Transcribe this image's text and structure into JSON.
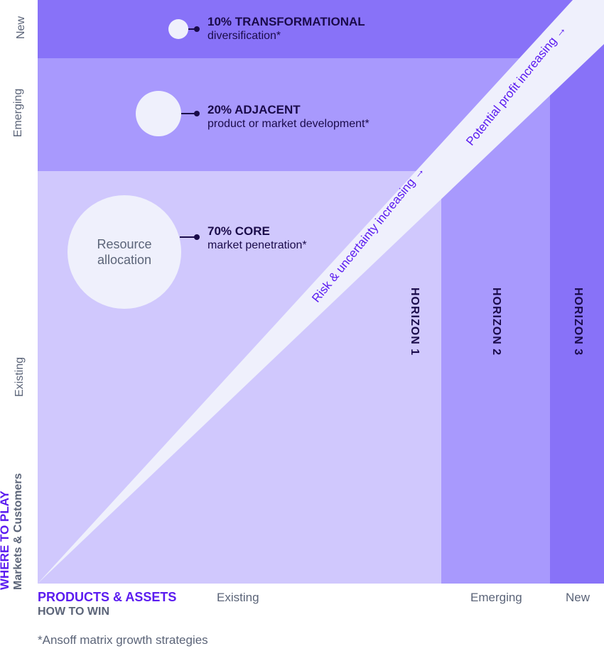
{
  "colors": {
    "new": "#8872f8",
    "emerging": "#a899fd",
    "existing": "#d0c8fd",
    "wedge": "#eff0fc",
    "accent": "#5b1cf0",
    "text": "#1a0b4a",
    "muted": "#5b6478"
  },
  "y_axis": {
    "title": "WHERE TO PLAY",
    "subtitle": "Markets & Customers",
    "levels": [
      "New",
      "Emerging",
      "Existing"
    ]
  },
  "x_axis": {
    "title": "PRODUCTS & ASSETS",
    "subtitle": "HOW TO WIN",
    "levels": [
      "Existing",
      "Emerging",
      "New"
    ]
  },
  "strategies": [
    {
      "title": "10% TRANSFORMATIONAL",
      "subtitle": "diversification*",
      "share": 10
    },
    {
      "title": "20% ADJACENT",
      "subtitle": "product or market development*",
      "share": 20
    },
    {
      "title": "70% CORE",
      "subtitle": "market penetration*",
      "share": 70
    }
  ],
  "circle_label": "Resource allocation",
  "horizons": [
    "HORIZON 1",
    "HORIZON 2",
    "HORIZON 3"
  ],
  "wedge": {
    "risk": "Risk & uncertainty increasing →",
    "profit": "Potential profit increasing →"
  },
  "footnote": "*Ansoff matrix growth strategies"
}
